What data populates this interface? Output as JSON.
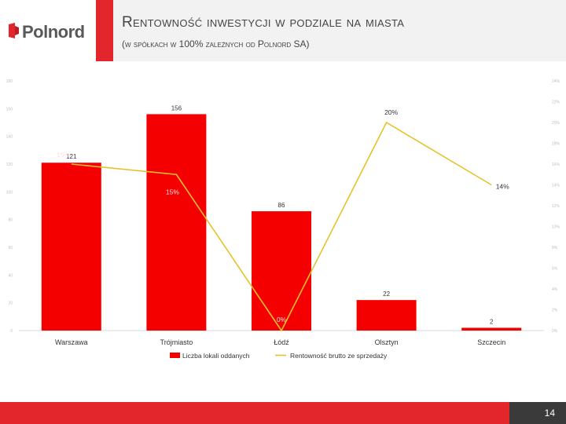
{
  "brand": {
    "name": "Polnord",
    "accent": "#e3262b"
  },
  "header": {
    "title": "Rentowność inwestycji w podziale na miasta",
    "subtitle": "(w spółkach w 100% zależnych od Polnord SA)"
  },
  "footer": {
    "page_number": "14"
  },
  "chart_data": {
    "type": "bar",
    "categories": [
      "Warszawa",
      "Trójmiasto",
      "Łódź",
      "Olsztyn",
      "Szczecin"
    ],
    "series": [
      {
        "name": "Liczba lokali oddanych",
        "kind": "bar",
        "axis": "left",
        "color": "#f40000",
        "values": [
          121,
          156,
          86,
          22,
          2
        ],
        "labels": [
          "121",
          "156",
          "86",
          "22",
          "2"
        ]
      },
      {
        "name": "Rentowność brutto ze sprzedaży",
        "kind": "line",
        "axis": "right",
        "color": "#e6c229",
        "values": [
          16,
          15,
          0,
          20,
          14
        ],
        "labels": [
          "16%",
          "15%",
          "0%",
          "20%",
          "14%"
        ]
      }
    ],
    "y_left": {
      "min": 0,
      "max": 180,
      "step": 20,
      "ticks": [
        "0",
        "20",
        "40",
        "60",
        "80",
        "100",
        "120",
        "140",
        "160",
        "180"
      ]
    },
    "y_right": {
      "min": 0,
      "max": 24,
      "step": 2,
      "ticks": [
        "0%",
        "2%",
        "4%",
        "6%",
        "8%",
        "10%",
        "12%",
        "14%",
        "16%",
        "18%",
        "20%",
        "22%",
        "24%"
      ]
    },
    "legend_position": "bottom",
    "grid": false
  }
}
